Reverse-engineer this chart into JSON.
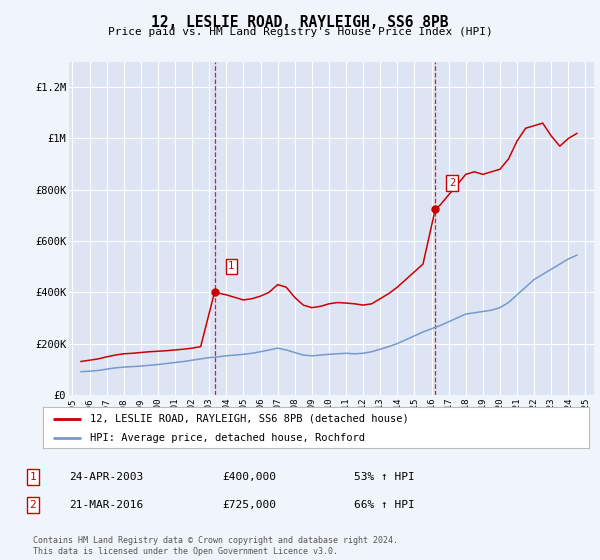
{
  "title": "12, LESLIE ROAD, RAYLEIGH, SS6 8PB",
  "subtitle": "Price paid vs. HM Land Registry's House Price Index (HPI)",
  "red_line_label": "12, LESLIE ROAD, RAYLEIGH, SS6 8PB (detached house)",
  "blue_line_label": "HPI: Average price, detached house, Rochford",
  "footer": "Contains HM Land Registry data © Crown copyright and database right 2024.\nThis data is licensed under the Open Government Licence v3.0.",
  "table_rows": [
    {
      "num": "1",
      "date": "24-APR-2003",
      "price": "£400,000",
      "hpi": "53% ↑ HPI"
    },
    {
      "num": "2",
      "date": "21-MAR-2016",
      "price": "£725,000",
      "hpi": "66% ↑ HPI"
    }
  ],
  "vline_years": [
    2003.31,
    2016.22
  ],
  "ylim": [
    0,
    1300000
  ],
  "yticks": [
    0,
    200000,
    400000,
    600000,
    800000,
    1000000,
    1200000
  ],
  "ytick_labels": [
    "£0",
    "£200K",
    "£400K",
    "£600K",
    "£800K",
    "£1M",
    "£1.2M"
  ],
  "red_x": [
    1995.5,
    1996,
    1996.5,
    1997,
    1997.5,
    1998,
    1998.5,
    1999,
    1999.5,
    2000,
    2000.5,
    2001,
    2001.5,
    2002,
    2002.5,
    2003.31,
    2004,
    2004.5,
    2005,
    2005.5,
    2006,
    2006.5,
    2007,
    2007.5,
    2008,
    2008.5,
    2009,
    2009.5,
    2010,
    2010.5,
    2011,
    2011.5,
    2012,
    2012.5,
    2013,
    2013.5,
    2014,
    2014.5,
    2015,
    2015.5,
    2016.22,
    2016.5,
    2017,
    2017.5,
    2018,
    2018.5,
    2019,
    2019.5,
    2020,
    2020.5,
    2021,
    2021.5,
    2022,
    2022.5,
    2023,
    2023.5,
    2024,
    2024.5
  ],
  "red_y": [
    130000,
    135000,
    140000,
    148000,
    155000,
    160000,
    162000,
    165000,
    168000,
    170000,
    172000,
    175000,
    178000,
    182000,
    188000,
    400000,
    390000,
    380000,
    370000,
    375000,
    385000,
    400000,
    430000,
    420000,
    380000,
    350000,
    340000,
    345000,
    355000,
    360000,
    358000,
    355000,
    350000,
    355000,
    375000,
    395000,
    420000,
    450000,
    480000,
    510000,
    725000,
    740000,
    780000,
    820000,
    860000,
    870000,
    860000,
    870000,
    880000,
    920000,
    990000,
    1040000,
    1050000,
    1060000,
    1010000,
    970000,
    1000000,
    1020000
  ],
  "blue_x": [
    1995.5,
    1996,
    1996.5,
    1997,
    1997.5,
    1998,
    1998.5,
    1999,
    1999.5,
    2000,
    2000.5,
    2001,
    2001.5,
    2002,
    2002.5,
    2003,
    2003.5,
    2004,
    2004.5,
    2005,
    2005.5,
    2006,
    2006.5,
    2007,
    2007.5,
    2008,
    2008.5,
    2009,
    2009.5,
    2010,
    2010.5,
    2011,
    2011.5,
    2012,
    2012.5,
    2013,
    2013.5,
    2014,
    2014.5,
    2015,
    2015.5,
    2016,
    2016.5,
    2017,
    2017.5,
    2018,
    2018.5,
    2019,
    2019.5,
    2020,
    2020.5,
    2021,
    2021.5,
    2022,
    2022.5,
    2023,
    2023.5,
    2024,
    2024.5
  ],
  "blue_y": [
    90000,
    92000,
    95000,
    100000,
    105000,
    108000,
    110000,
    112000,
    115000,
    118000,
    122000,
    126000,
    130000,
    135000,
    140000,
    145000,
    148000,
    152000,
    155000,
    158000,
    162000,
    168000,
    175000,
    182000,
    175000,
    165000,
    155000,
    152000,
    155000,
    158000,
    160000,
    162000,
    160000,
    162000,
    168000,
    178000,
    188000,
    200000,
    215000,
    230000,
    245000,
    258000,
    270000,
    285000,
    300000,
    315000,
    320000,
    325000,
    330000,
    340000,
    360000,
    390000,
    420000,
    450000,
    470000,
    490000,
    510000,
    530000,
    545000
  ],
  "bg_color": "#f0f4fb",
  "plot_bg_color": "#dde5f5",
  "red_color": "#cc0000",
  "blue_color": "#7799cc",
  "grid_color": "#ffffff",
  "vline_color": "#cc0000",
  "marker1_x": 2003.31,
  "marker1_y": 400000,
  "marker2_x": 2016.22,
  "marker2_y": 725000,
  "xlim_left": 1994.8,
  "xlim_right": 2025.5
}
